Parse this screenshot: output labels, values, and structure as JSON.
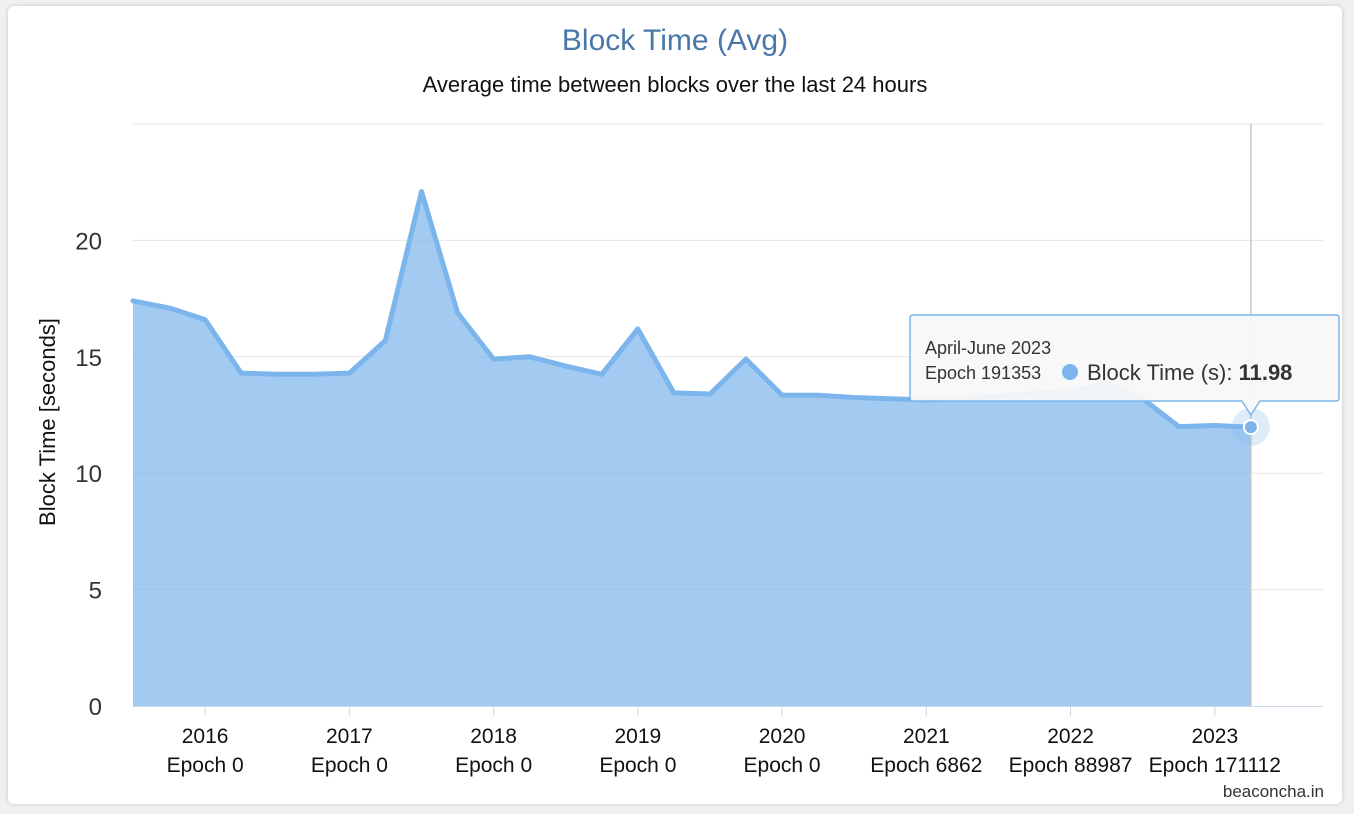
{
  "chart_data": {
    "type": "area",
    "title": "Block Time (Avg)",
    "subtitle": "Average time between blocks over the last 24 hours",
    "ylabel": "Block Time [seconds]",
    "xlabel": "",
    "ylim": [
      0,
      25
    ],
    "y_ticks": [
      "0",
      "5",
      "10",
      "15",
      "20"
    ],
    "x_ticks": [
      {
        "year": "2016",
        "epoch": "Epoch 0"
      },
      {
        "year": "2017",
        "epoch": "Epoch 0"
      },
      {
        "year": "2018",
        "epoch": "Epoch 0"
      },
      {
        "year": "2019",
        "epoch": "Epoch 0"
      },
      {
        "year": "2020",
        "epoch": "Epoch 0"
      },
      {
        "year": "2021",
        "epoch": "Epoch 6862"
      },
      {
        "year": "2022",
        "epoch": "Epoch 88987"
      },
      {
        "year": "2023",
        "epoch": "Epoch 171112"
      }
    ],
    "x_range": [
      2015.5,
      2023.75
    ],
    "grid": true,
    "legend": "none",
    "series": [
      {
        "name": "Block Time (s)",
        "color": "#7cb5ec",
        "x": [
          2015.5,
          2015.75,
          2016.0,
          2016.25,
          2016.5,
          2016.75,
          2017.0,
          2017.25,
          2017.5,
          2017.75,
          2018.0,
          2018.25,
          2018.5,
          2018.75,
          2019.0,
          2019.25,
          2019.5,
          2019.75,
          2020.0,
          2020.25,
          2020.5,
          2020.75,
          2021.0,
          2021.25,
          2021.5,
          2021.75,
          2022.0,
          2022.25,
          2022.5,
          2022.75,
          2023.0,
          2023.25
        ],
        "values": [
          17.4,
          17.1,
          16.6,
          14.3,
          14.25,
          14.25,
          14.3,
          15.7,
          22.1,
          16.9,
          14.9,
          15.0,
          14.6,
          14.25,
          16.2,
          13.45,
          13.4,
          14.9,
          13.35,
          13.35,
          13.25,
          13.2,
          13.15,
          13.2,
          13.3,
          13.45,
          13.5,
          13.9,
          13.2,
          12.0,
          12.05,
          11.98
        ]
      }
    ],
    "tooltip": {
      "period": "April-June 2023",
      "epoch": "Epoch 191353",
      "series_label": "Block Time (s): ",
      "value": "11.98",
      "point_index": 31
    },
    "credit": "beaconcha.in"
  }
}
